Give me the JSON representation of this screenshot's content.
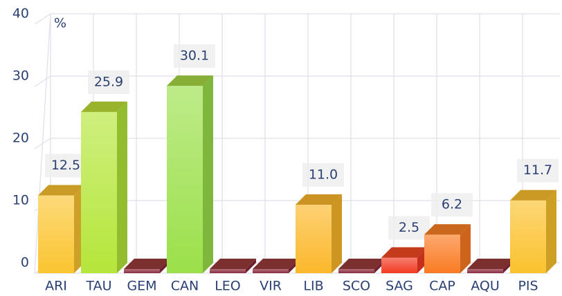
{
  "chart_data": {
    "type": "bar3d",
    "ylabel": "%",
    "categories": [
      "ARI",
      "TAU",
      "GEM",
      "CAN",
      "LEO",
      "VIR",
      "LIB",
      "SCO",
      "SAG",
      "CAP",
      "AQU",
      "PIS"
    ],
    "values": [
      12.5,
      25.9,
      0,
      30.1,
      0,
      0,
      11.0,
      0,
      2.5,
      6.2,
      0,
      11.7
    ],
    "value_labels": [
      "12.5",
      "25.9",
      null,
      "30.1",
      null,
      null,
      "11.0",
      null,
      "2.5",
      "6.2",
      null,
      "11.7"
    ],
    "colors": [
      "#fbc531",
      "#b5e63a",
      "#8a2a3c",
      "#9be04a",
      "#8a2a3c",
      "#8a2a3c",
      "#fbb82a",
      "#8a2a3c",
      "#f23a22",
      "#fa7a22",
      "#8a2a3c",
      "#fbc22e"
    ],
    "ylim": [
      0,
      40
    ],
    "yticks": [
      0,
      10,
      20,
      30,
      40
    ],
    "grid": true
  }
}
